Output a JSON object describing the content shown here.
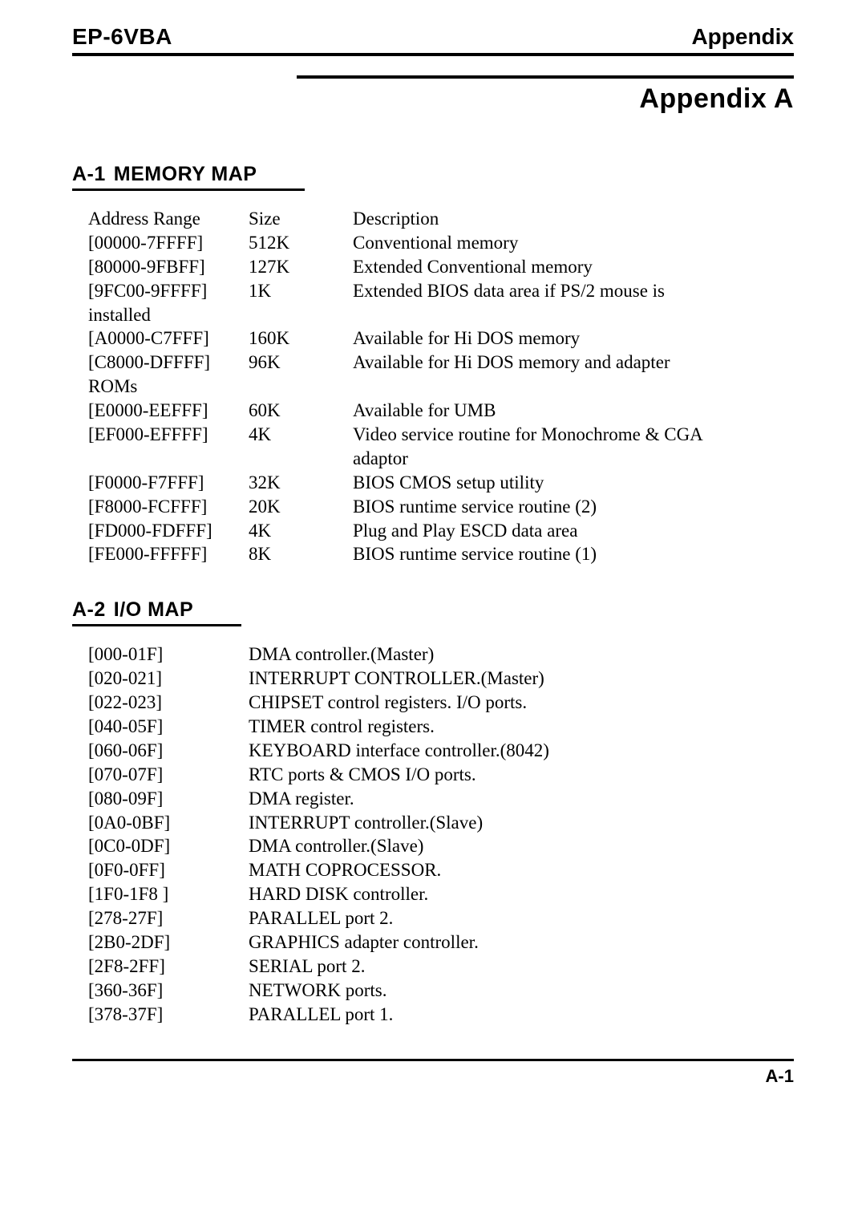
{
  "header": {
    "left": "EP-6VBA",
    "right": "Appendix"
  },
  "appendix_title": "Appendix A",
  "sections": {
    "memory": {
      "num": "A-1",
      "title": "MEMORY MAP",
      "columns": {
        "addr": "Address Range",
        "size": "Size",
        "desc": "Description"
      },
      "rows": [
        {
          "addr": "[00000-7FFFF]",
          "size": "512K",
          "desc": "Conventional memory"
        },
        {
          "addr": "[80000-9FBFF]",
          "size": "127K",
          "desc": "Extended Conventional memory"
        },
        {
          "addr": "[9FC00-9FFFF]",
          "size": "1K",
          "desc": "Extended BIOS data area if PS/2 mouse is",
          "cont_addr": "installed"
        },
        {
          "addr": "[A0000-C7FFF]",
          "size": "160K",
          "desc": "Available for Hi DOS memory"
        },
        {
          "addr": "[C8000-DFFFF]",
          "size": "96K",
          "desc": "Available for Hi DOS memory and adapter",
          "cont_addr": "ROMs"
        },
        {
          "addr": "[E0000-EEFFF]",
          "size": "60K",
          "desc": "Available for UMB"
        },
        {
          "addr": "[EF000-EFFFF]",
          "size": "4K",
          "desc": "Video service routine for Monochrome & CGA",
          "cont_desc": "adaptor"
        },
        {
          "addr": "[F0000-F7FFF]",
          "size": "32K",
          "desc": "BIOS CMOS setup utility"
        },
        {
          "addr": "[F8000-FCFFF]",
          "size": "20K",
          "desc": "BIOS runtime service routine (2)"
        },
        {
          "addr": "[FD000-FDFFF]",
          "size": "4K",
          "desc": "Plug and Play ESCD data area"
        },
        {
          "addr": "[FE000-FFFFF]",
          "size": "8K",
          "desc": "BIOS runtime service routine (1)"
        }
      ]
    },
    "io": {
      "num": "A-2",
      "title": "I/O MAP",
      "rows": [
        {
          "addr": "[000-01F]",
          "desc": "DMA controller.(Master)"
        },
        {
          "addr": "[020-021]",
          "desc": "INTERRUPT  CONTROLLER.(Master)"
        },
        {
          "addr": "[022-023]",
          "desc": "CHIPSET control registers. I/O ports."
        },
        {
          "addr": "[040-05F]",
          "desc": "TIMER control registers."
        },
        {
          "addr": "[060-06F]",
          "desc": "KEYBOARD interface controller.(8042)"
        },
        {
          "addr": "[070-07F]",
          "desc": "RTC ports & CMOS I/O ports."
        },
        {
          "addr": "[080-09F]",
          "desc": "DMA register."
        },
        {
          "addr": "[0A0-0BF]",
          "desc": "INTERRUPT controller.(Slave)"
        },
        {
          "addr": "[0C0-0DF]",
          "desc": "DMA controller.(Slave)"
        },
        {
          "addr": "[0F0-0FF]",
          "desc": "MATH COPROCESSOR."
        },
        {
          "addr": "[1F0-1F8 ]",
          "desc": "HARD DISK controller."
        },
        {
          "addr": "[278-27F]",
          "desc": "PARALLEL port 2."
        },
        {
          "addr": "[2B0-2DF]",
          "desc": "GRAPHICS adapter controller."
        },
        {
          "addr": "[2F8-2FF]",
          "desc": "SERIAL port 2."
        },
        {
          "addr": "[360-36F]",
          "desc": "NETWORK ports."
        },
        {
          "addr": "[378-37F]",
          "desc": "PARALLEL port 1."
        }
      ]
    }
  },
  "footer": "A-1"
}
